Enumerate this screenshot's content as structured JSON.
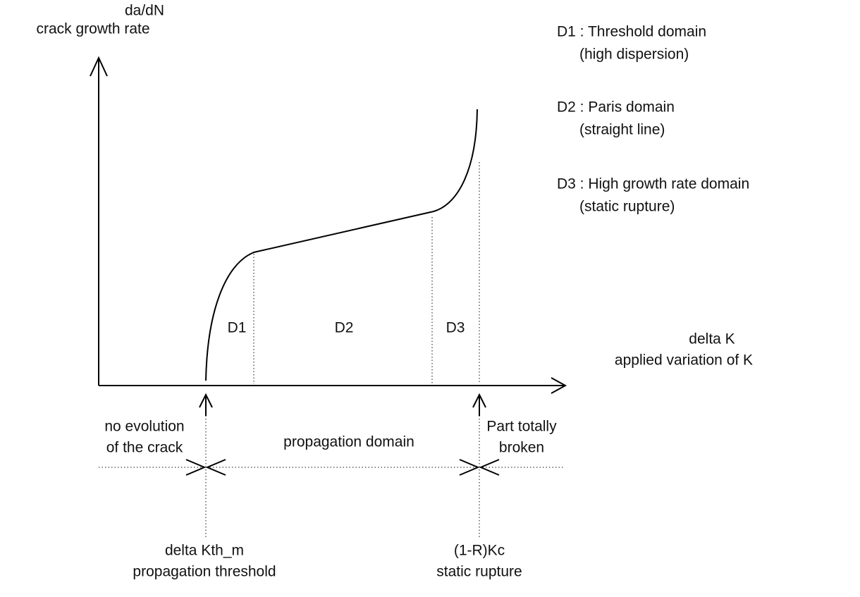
{
  "y_axis": {
    "label": "da/dN",
    "sublabel": "crack growth rate"
  },
  "x_axis": {
    "label": "delta K",
    "sublabel": "applied variation of K"
  },
  "legend": [
    {
      "label": "D1 : Threshold domain",
      "note": "(high dispersion)"
    },
    {
      "label": "D2 : Paris domain",
      "note": "(straight line)"
    },
    {
      "label": "D3 : High growth rate domain",
      "note": "(static rupture)"
    }
  ],
  "regions": [
    "D1",
    "D2",
    "D3"
  ],
  "domains": {
    "left": [
      "no evolution",
      "of the crack"
    ],
    "middle": "propagation domain",
    "right": [
      "Part totally",
      "broken"
    ]
  },
  "markers": [
    {
      "label": "delta Kth_m",
      "note": "propagation threshold"
    },
    {
      "label": "(1-R)Kc",
      "note": "static rupture"
    }
  ]
}
